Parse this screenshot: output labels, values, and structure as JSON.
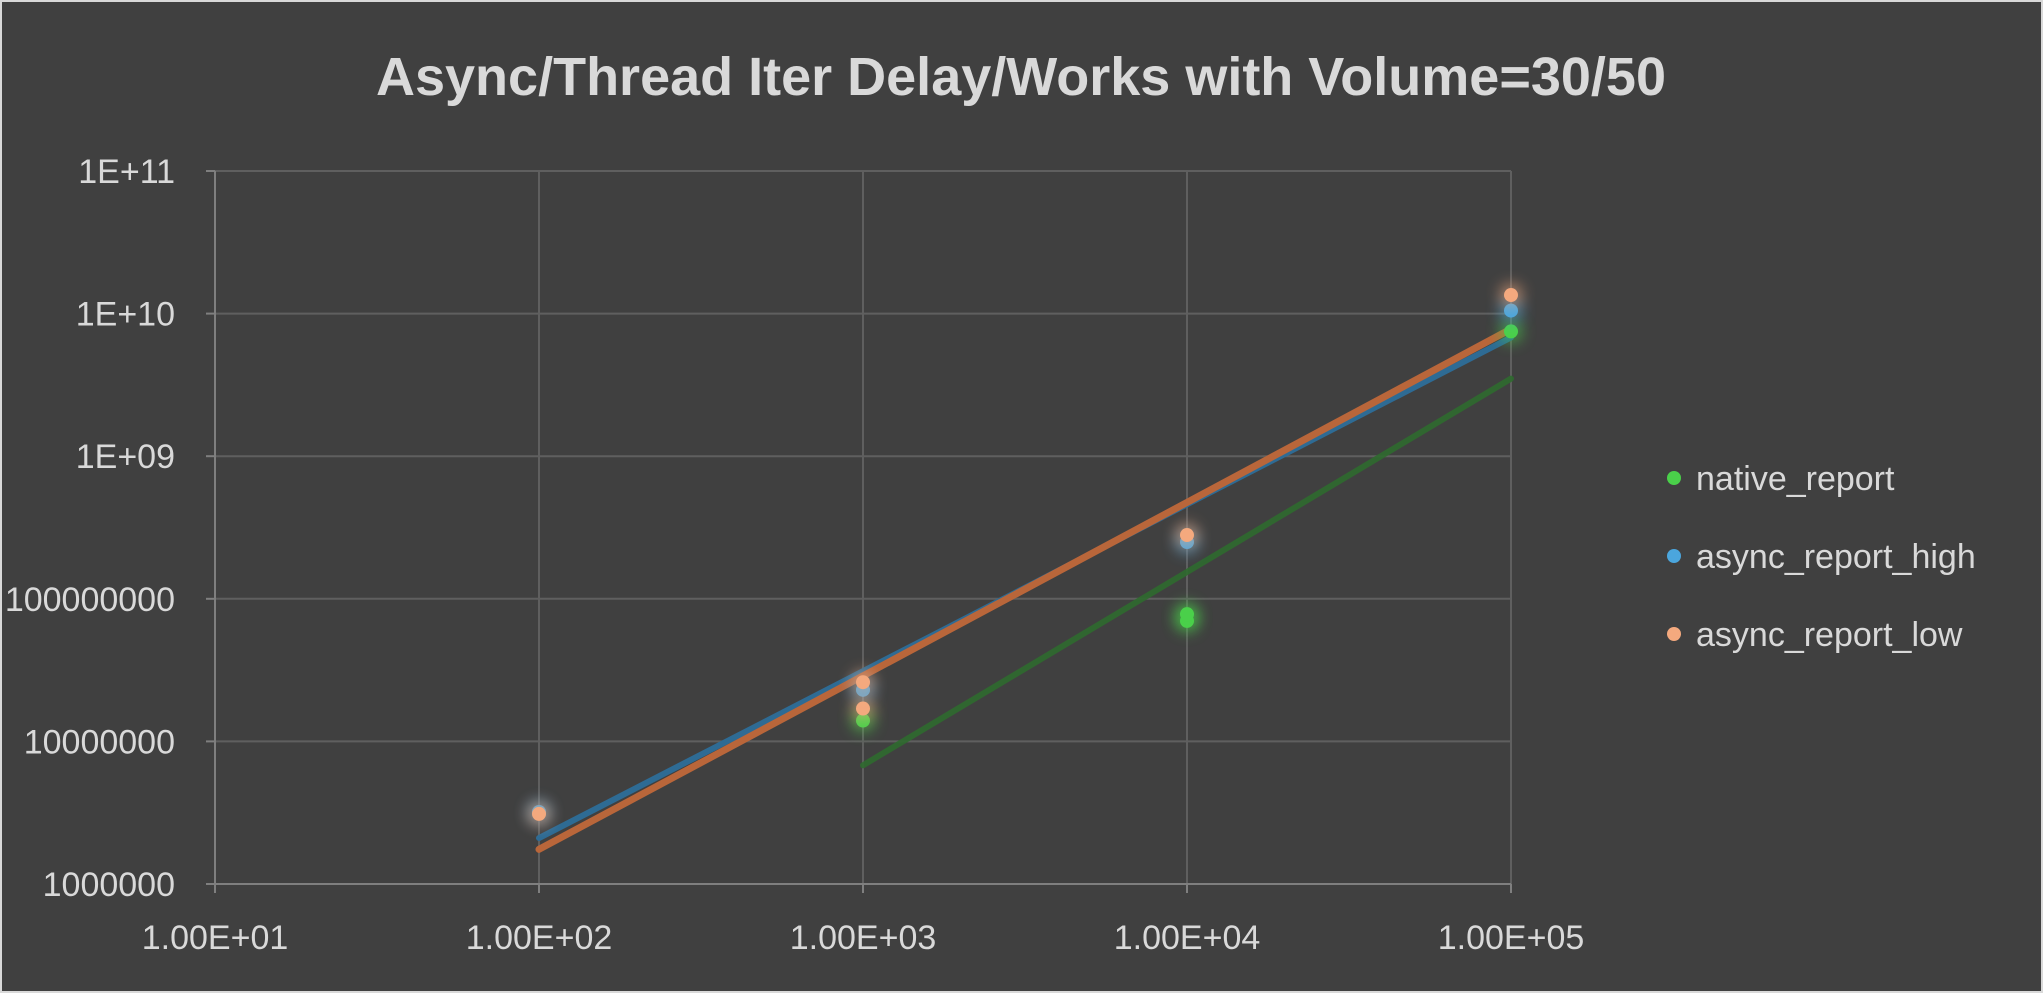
{
  "chart_data": {
    "type": "scatter",
    "title": "Async/Thread Iter Delay/Works with Volume=30/50",
    "xlabel": "",
    "ylabel": "",
    "x_scale": "log",
    "y_scale": "log",
    "xlim": [
      10,
      100000
    ],
    "ylim": [
      1000000,
      100000000000
    ],
    "x_ticks": [
      {
        "value": 10,
        "label": "1.00E+01"
      },
      {
        "value": 100,
        "label": "1.00E+02"
      },
      {
        "value": 1000,
        "label": "1.00E+03"
      },
      {
        "value": 10000,
        "label": "1.00E+04"
      },
      {
        "value": 100000,
        "label": "1.00E+05"
      }
    ],
    "y_ticks": [
      {
        "value": 1000000,
        "label": "1000000"
      },
      {
        "value": 10000000,
        "label": "10000000"
      },
      {
        "value": 100000000,
        "label": "100000000"
      },
      {
        "value": 1000000000,
        "label": "1E+09"
      },
      {
        "value": 10000000000,
        "label": "1E+10"
      },
      {
        "value": 100000000000,
        "label": "1E+11"
      }
    ],
    "grid": true,
    "legend_position": "right",
    "series": [
      {
        "name": "native_report",
        "color": "#4ad04a",
        "points": [
          {
            "x": 1000,
            "y": 14000000
          },
          {
            "x": 10000,
            "y": 70000000
          },
          {
            "x": 10000,
            "y": 78000000
          },
          {
            "x": 100000,
            "y": 7500000000
          }
        ],
        "trendline": {
          "color": "#2f6b2f",
          "from": {
            "x": 1000,
            "y": 6800000
          },
          "to": {
            "x": 100000,
            "y": 3500000000
          }
        }
      },
      {
        "name": "async_report_high",
        "color": "#4ba6dd",
        "points": [
          {
            "x": 100,
            "y": 3200000
          },
          {
            "x": 1000,
            "y": 23000000
          },
          {
            "x": 10000,
            "y": 250000000
          },
          {
            "x": 100000,
            "y": 10500000000
          }
        ],
        "trendline": {
          "color": "#2e6b94",
          "from": {
            "x": 100,
            "y": 2100000
          },
          "to": {
            "x": 100000,
            "y": 6800000000
          }
        }
      },
      {
        "name": "async_report_low",
        "color": "#f4a97e",
        "points": [
          {
            "x": 100,
            "y": 3100000
          },
          {
            "x": 1000,
            "y": 17000000
          },
          {
            "x": 1000,
            "y": 26000000
          },
          {
            "x": 10000,
            "y": 280000000
          },
          {
            "x": 100000,
            "y": 13500000000
          }
        ],
        "trendline": {
          "color": "#b9663a",
          "from": {
            "x": 100,
            "y": 1750000
          },
          "to": {
            "x": 100000,
            "y": 7800000000
          }
        }
      }
    ]
  }
}
